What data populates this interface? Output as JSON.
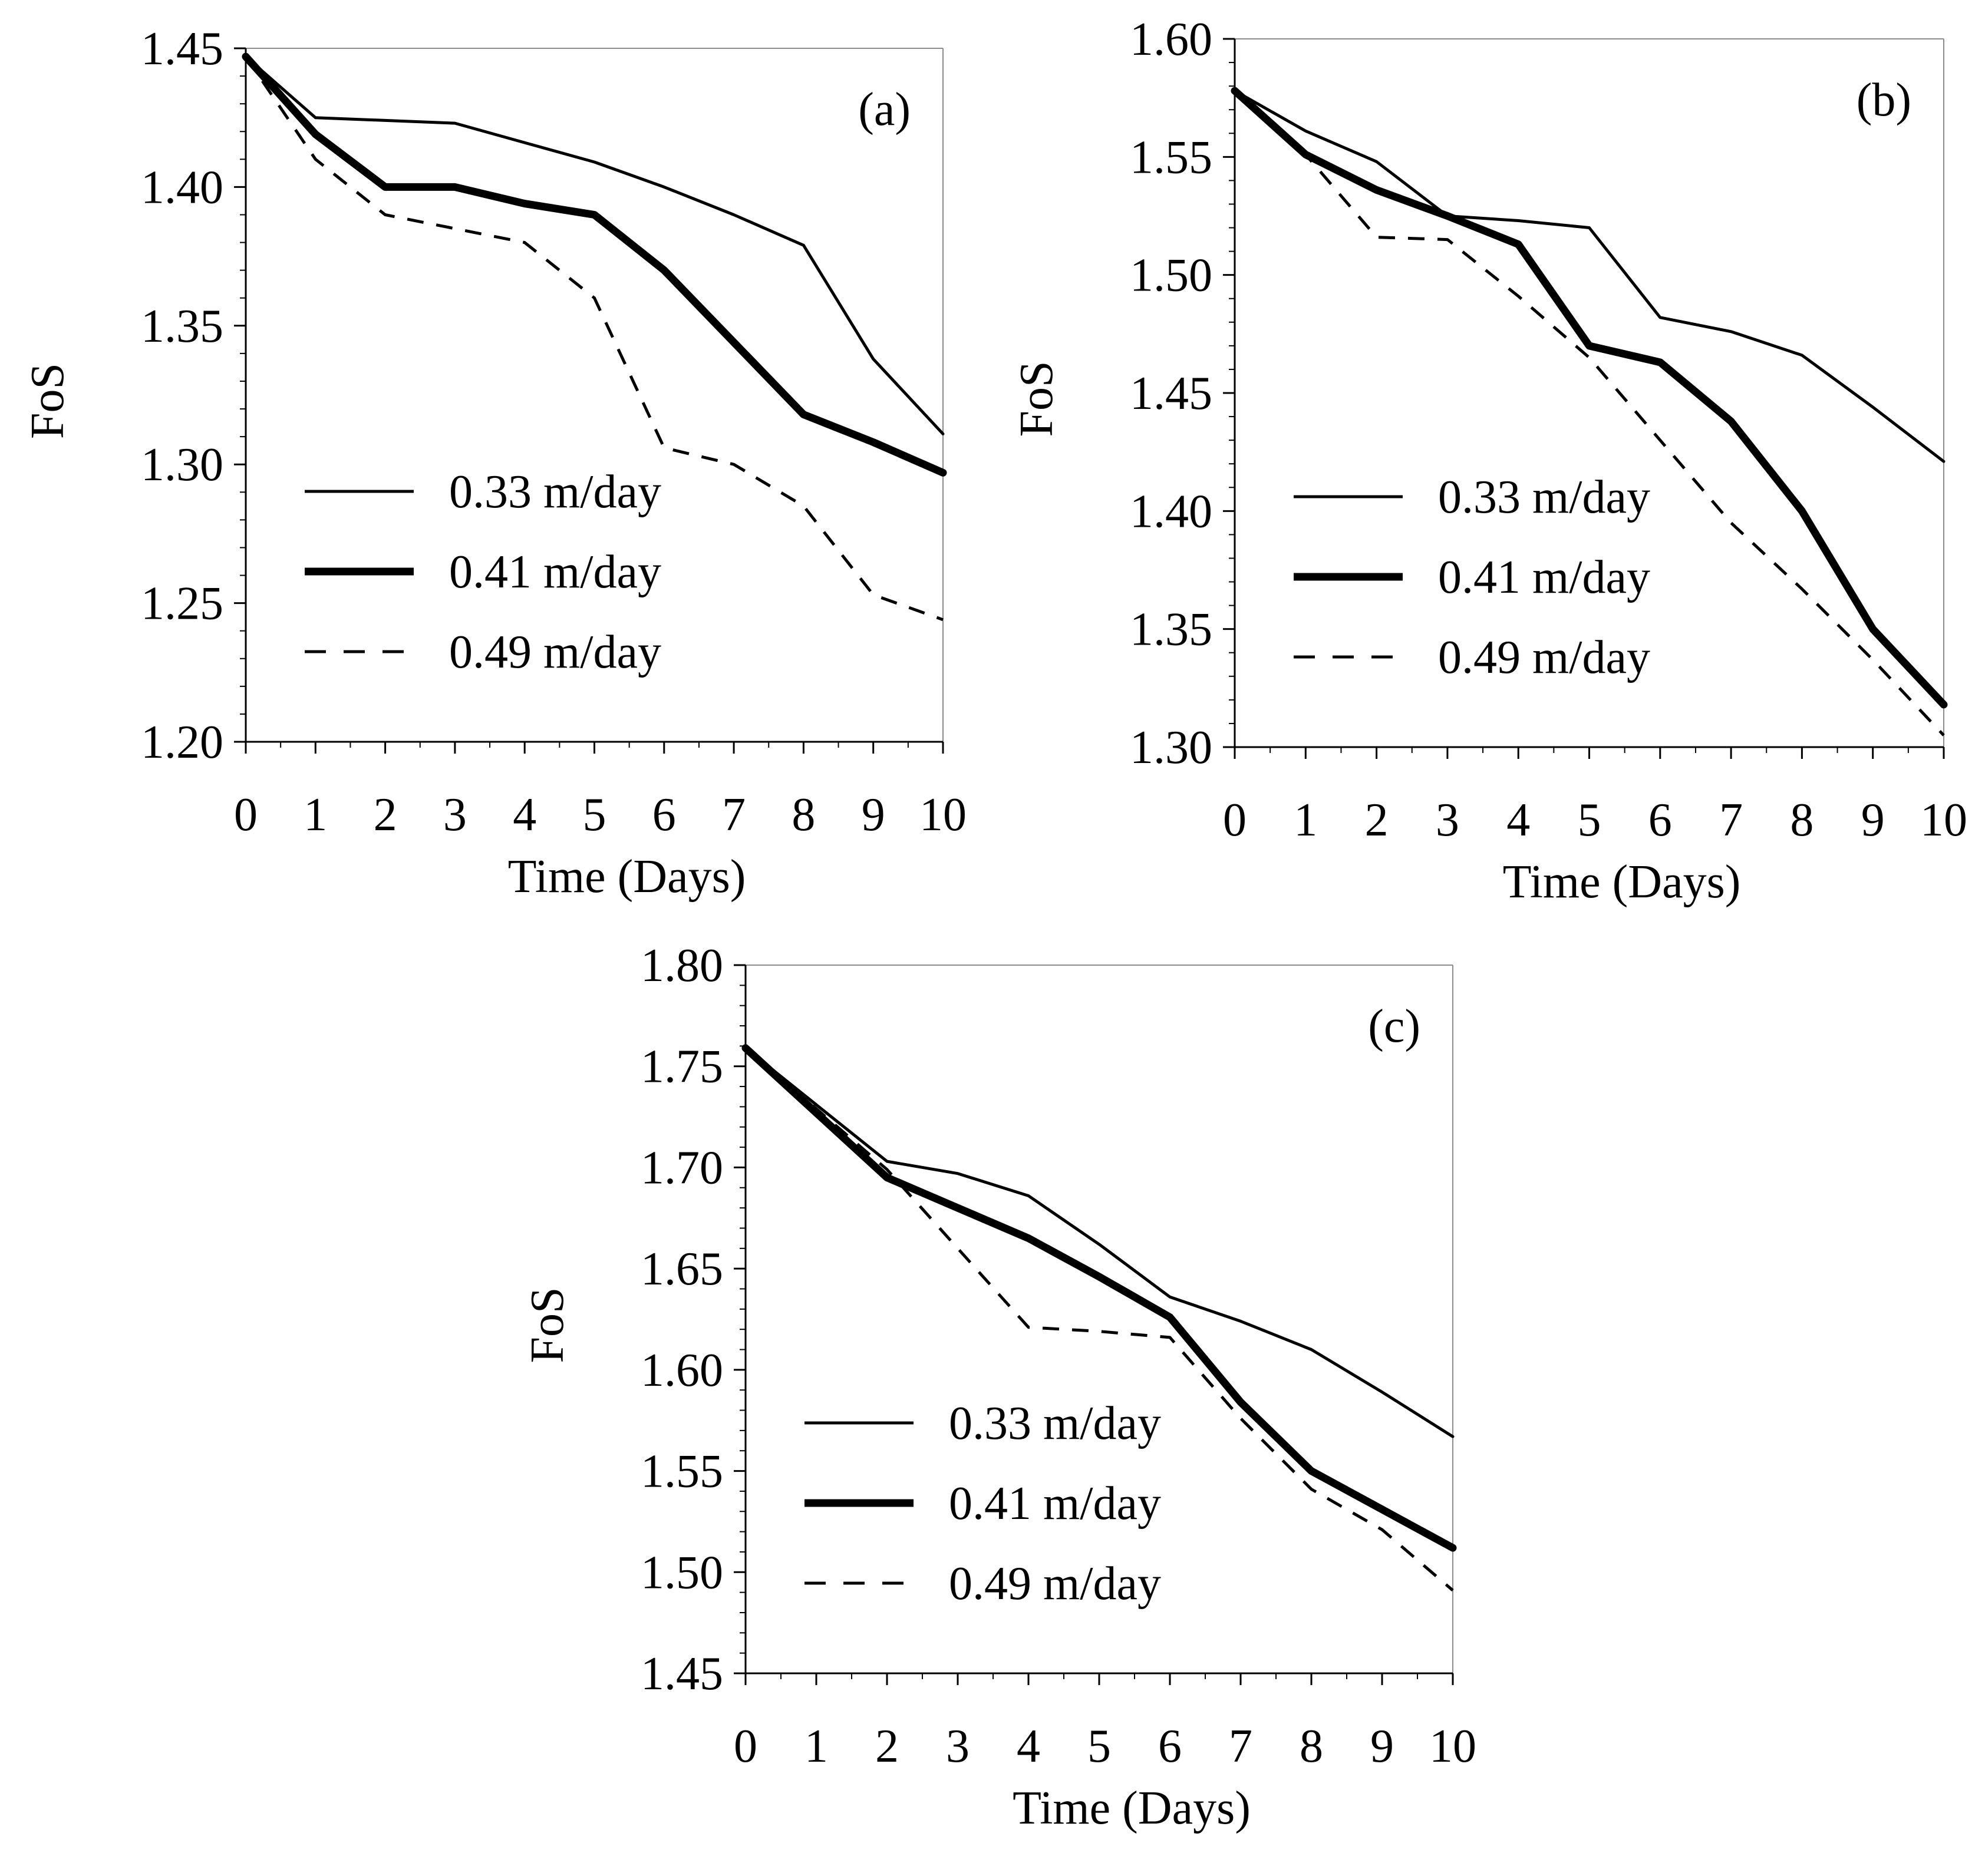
{
  "chart_data": [
    {
      "type": "line",
      "panel_label": "(a)",
      "xlabel": "Time (Days)",
      "ylabel": "FoS",
      "xlim": [
        0,
        10
      ],
      "ylim": [
        1.2,
        1.45
      ],
      "x": [
        0,
        1,
        2,
        3,
        4,
        5,
        6,
        7,
        8,
        9,
        10
      ],
      "x_tick_labels": [
        "0",
        "1",
        "2",
        "3",
        "4",
        "5",
        "6",
        "7",
        "8",
        "9",
        "10"
      ],
      "y_ticks": [
        1.2,
        1.25,
        1.3,
        1.35,
        1.4,
        1.45
      ],
      "y_tick_labels": [
        "1.20",
        "1.25",
        "1.30",
        "1.35",
        "1.40",
        "1.45"
      ],
      "legend_position": "bottom-left",
      "series": [
        {
          "name": "0.33 m/day",
          "style": "thin",
          "values": [
            1.447,
            1.425,
            1.424,
            1.423,
            1.416,
            1.409,
            1.4,
            1.39,
            1.379,
            1.338,
            1.311
          ]
        },
        {
          "name": "0.41 m/day",
          "style": "thick",
          "values": [
            1.447,
            1.419,
            1.4,
            1.4,
            1.394,
            1.39,
            1.37,
            1.344,
            1.318,
            1.308,
            1.297
          ]
        },
        {
          "name": "0.49 m/day",
          "style": "dashed",
          "values": [
            1.447,
            1.41,
            1.39,
            1.385,
            1.38,
            1.36,
            1.306,
            1.3,
            1.285,
            1.253,
            1.244
          ]
        }
      ]
    },
    {
      "type": "line",
      "panel_label": "(b)",
      "xlabel": "Time (Days)",
      "ylabel": "FoS",
      "xlim": [
        0,
        10
      ],
      "ylim": [
        1.3,
        1.6
      ],
      "x": [
        0,
        1,
        2,
        3,
        4,
        5,
        6,
        7,
        8,
        9,
        10
      ],
      "x_tick_labels": [
        "0",
        "1",
        "2",
        "3",
        "4",
        "5",
        "6",
        "7",
        "8",
        "9",
        "10"
      ],
      "y_ticks": [
        1.3,
        1.35,
        1.4,
        1.45,
        1.5,
        1.55,
        1.6
      ],
      "y_tick_labels": [
        "1.30",
        "1.35",
        "1.40",
        "1.45",
        "1.50",
        "1.55",
        "1.60"
      ],
      "legend_position": "bottom-left",
      "series": [
        {
          "name": "0.33 m/day",
          "style": "thin",
          "values": [
            1.578,
            1.561,
            1.548,
            1.525,
            1.523,
            1.52,
            1.482,
            1.476,
            1.466,
            1.444,
            1.421
          ]
        },
        {
          "name": "0.41 m/day",
          "style": "thick",
          "values": [
            1.578,
            1.551,
            1.536,
            1.525,
            1.513,
            1.47,
            1.463,
            1.438,
            1.4,
            1.35,
            1.318
          ]
        },
        {
          "name": "0.49 m/day",
          "style": "dashed",
          "values": [
            1.578,
            1.551,
            1.516,
            1.515,
            1.491,
            1.465,
            1.43,
            1.395,
            1.367,
            1.337,
            1.305
          ]
        }
      ]
    },
    {
      "type": "line",
      "panel_label": "(c)",
      "xlabel": "Time (Days)",
      "ylabel": "FoS",
      "xlim": [
        0,
        10
      ],
      "ylim": [
        1.45,
        1.8
      ],
      "x": [
        0,
        1,
        2,
        3,
        4,
        5,
        6,
        7,
        8,
        9,
        10
      ],
      "x_tick_labels": [
        "0",
        "1",
        "2",
        "3",
        "4",
        "5",
        "6",
        "7",
        "8",
        "9",
        "10"
      ],
      "y_ticks": [
        1.45,
        1.5,
        1.55,
        1.6,
        1.65,
        1.7,
        1.75,
        1.8
      ],
      "y_tick_labels": [
        "1.45",
        "1.50",
        "1.55",
        "1.60",
        "1.65",
        "1.70",
        "1.75",
        "1.80"
      ],
      "legend_position": "bottom-left",
      "series": [
        {
          "name": "0.33 m/day",
          "style": "thin",
          "values": [
            1.759,
            1.731,
            1.703,
            1.697,
            1.686,
            1.662,
            1.636,
            1.624,
            1.61,
            1.589,
            1.567
          ]
        },
        {
          "name": "0.41 m/day",
          "style": "thick",
          "values": [
            1.759,
            1.727,
            1.695,
            1.68,
            1.665,
            1.646,
            1.626,
            1.584,
            1.55,
            1.531,
            1.512
          ]
        },
        {
          "name": "0.49 m/day",
          "style": "dashed",
          "values": [
            1.759,
            1.729,
            1.699,
            1.66,
            1.621,
            1.619,
            1.616,
            1.576,
            1.541,
            1.521,
            1.491
          ]
        }
      ]
    }
  ]
}
